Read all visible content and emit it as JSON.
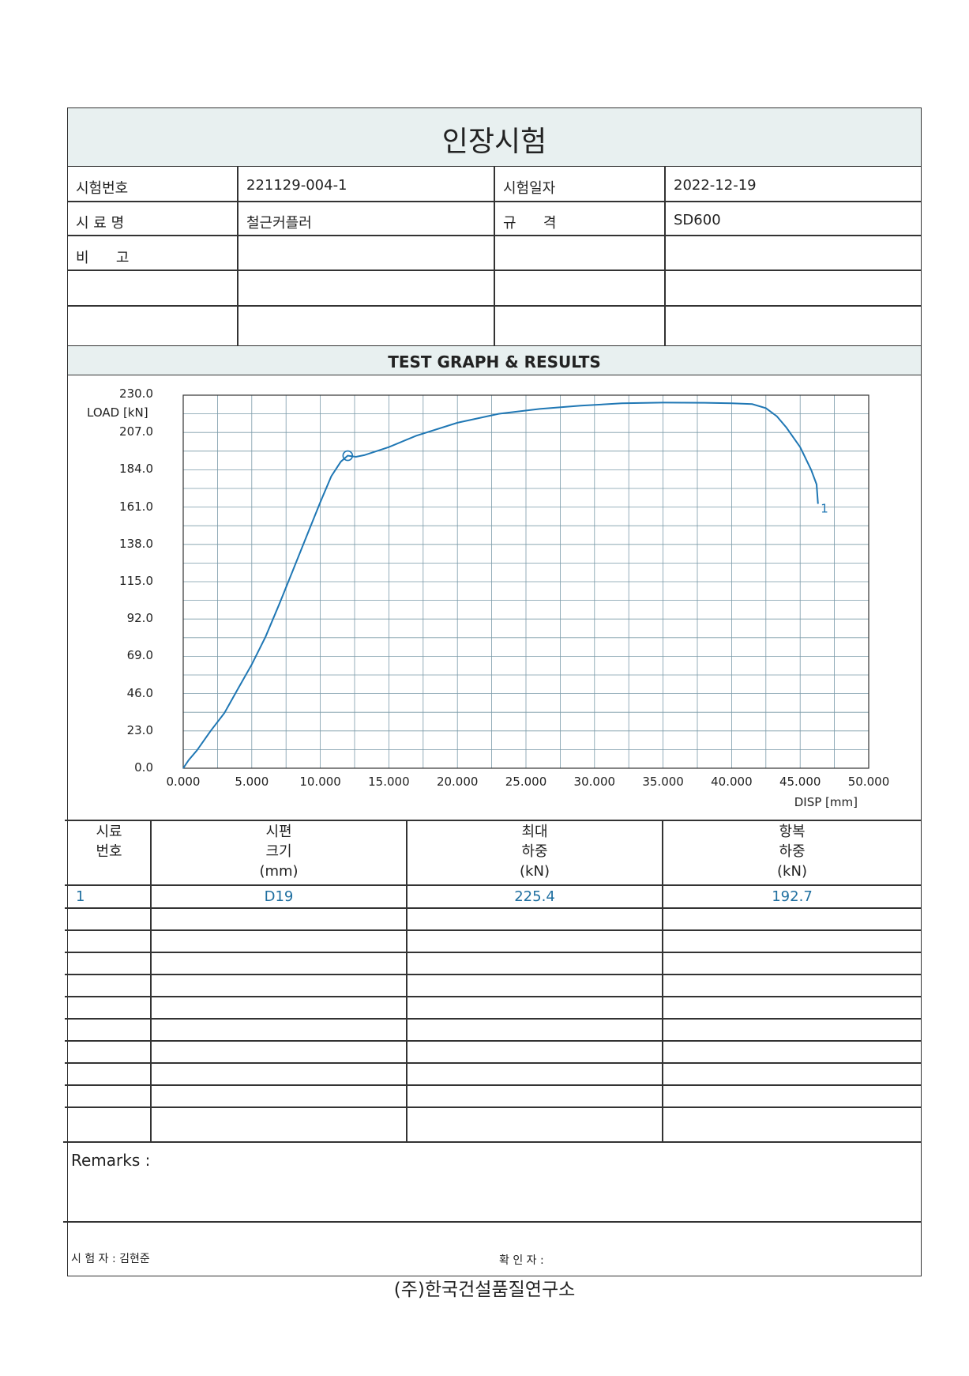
{
  "document": {
    "title": "인장시험",
    "footer_org": "(주)한국건설품질연구소"
  },
  "info": {
    "test_no_label": "시험번호",
    "test_no_value": "221129-004-1",
    "test_date_label": "시험일자",
    "test_date_value": "2022-12-19",
    "sample_name_label": "시 료 명",
    "sample_name_value": "철근커플러",
    "spec_label": "규      격",
    "spec_value": "SD600",
    "remarks_label": "비      고"
  },
  "graph_section": {
    "title": "TEST GRAPH & RESULTS"
  },
  "chart_data": {
    "type": "line",
    "ylabel": "LOAD [kN]",
    "xlabel": "DISP [mm]",
    "x_ticks": [
      "0.000",
      "5.000",
      "10.000",
      "15.000",
      "20.000",
      "25.000",
      "30.000",
      "35.000",
      "40.000",
      "45.000",
      "50.000"
    ],
    "y_ticks": [
      "0.0",
      "23.0",
      "46.0",
      "69.0",
      "92.0",
      "115.0",
      "138.0",
      "161.0",
      "184.0",
      "207.0",
      "230.0"
    ],
    "xlim": [
      0,
      50
    ],
    "ylim": [
      0,
      230
    ],
    "grid": true,
    "series": [
      {
        "name": "1",
        "color": "#1f77b4",
        "x": [
          0.0,
          0.4,
          1.0,
          2.0,
          3.0,
          4.0,
          5.0,
          6.0,
          7.0,
          8.0,
          9.0,
          10.0,
          10.8,
          11.5,
          12.0,
          12.6,
          13.2,
          15.0,
          17.0,
          20.0,
          23.0,
          26.0,
          29.0,
          32.0,
          35.0,
          38.0,
          40.0,
          41.5,
          42.5,
          43.3,
          44.0,
          45.0,
          45.8,
          46.2,
          46.3
        ],
        "y": [
          0.0,
          5.0,
          11.0,
          23.0,
          34.0,
          49.0,
          64.0,
          81.0,
          101.0,
          122.0,
          143.0,
          164.0,
          180.0,
          189.0,
          192.7,
          192.0,
          193.0,
          198.0,
          205.0,
          213.0,
          218.5,
          221.5,
          223.5,
          225.0,
          225.4,
          225.3,
          225.0,
          224.5,
          222.0,
          217.0,
          210.0,
          198.0,
          184.0,
          175.0,
          163.0
        ]
      }
    ],
    "annotations": [
      {
        "text": "1",
        "x": 46.5,
        "y": 160.0
      },
      {
        "type": "marker-circle",
        "x": 12.0,
        "y": 192.7
      }
    ]
  },
  "results": {
    "headers": [
      [
        "시료",
        "번호"
      ],
      [
        "시편",
        "크기",
        "(mm)"
      ],
      [
        "최대",
        "하중",
        "(kN)"
      ],
      [
        "항복",
        "하중",
        "(kN)"
      ]
    ],
    "rows": [
      [
        "1",
        "D19",
        "225.4",
        "192.7"
      ]
    ]
  },
  "remarks": {
    "label": "Remarks :"
  },
  "signature": {
    "tester_label": "시 험 자 : 김현준",
    "checker_label": "확 인 자 :"
  }
}
